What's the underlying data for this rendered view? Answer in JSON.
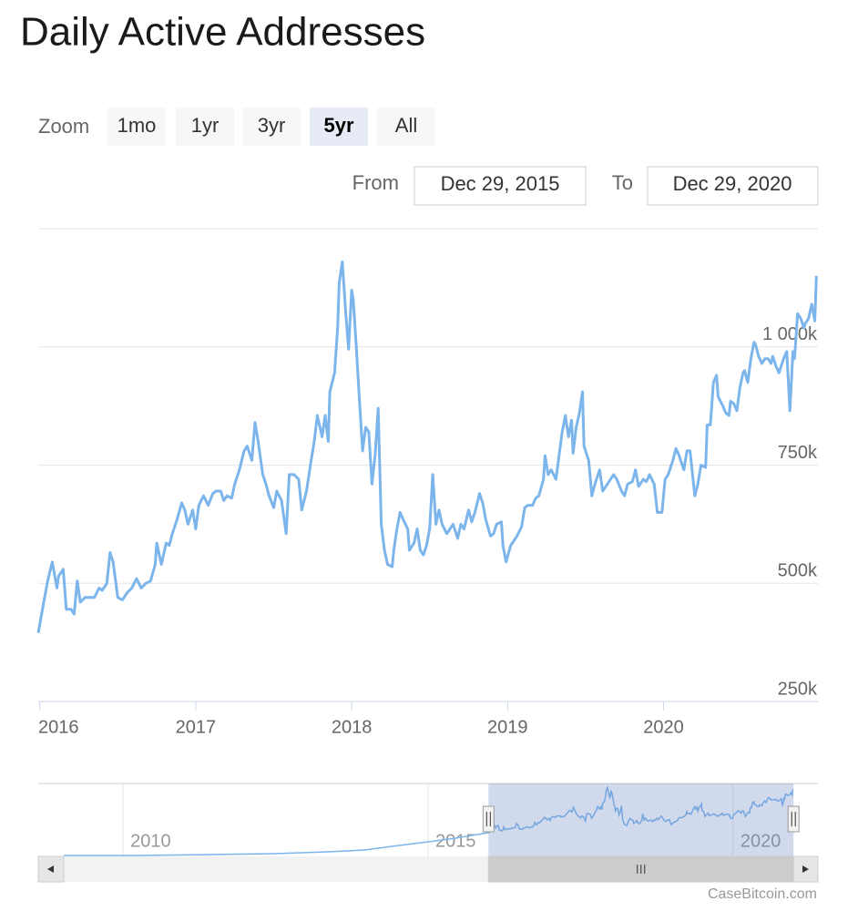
{
  "chart_data": {
    "type": "line",
    "title": "Daily Active Addresses",
    "zoom_label": "Zoom",
    "zoom_buttons": [
      "1mo",
      "1yr",
      "3yr",
      "5yr",
      "All"
    ],
    "selected_zoom_index": 3,
    "from_label": "From",
    "from": "Dec 29, 2015",
    "to_label": "To",
    "to": "Dec 29, 2020",
    "credit": "CaseBitcoin.com",
    "color": "#7cb5ec",
    "xlim": [
      2015.99,
      2020.99
    ],
    "xticks": [
      2016,
      2017,
      2018,
      2019,
      2020
    ],
    "ylim": [
      250,
      1250
    ],
    "yticks": [
      {
        "value": 250,
        "label": "250k"
      },
      {
        "value": 500,
        "label": "500k"
      },
      {
        "value": 750,
        "label": "750k"
      },
      {
        "value": 1000,
        "label": "1 000k"
      }
    ],
    "grid": true,
    "x": [
      2015.99,
      2016.02,
      2016.05,
      2016.08,
      2016.11,
      2016.12,
      2016.15,
      2016.17,
      2016.2,
      2016.22,
      2016.24,
      2016.26,
      2016.29,
      2016.32,
      2016.35,
      2016.38,
      2016.4,
      2016.43,
      2016.45,
      2016.47,
      2016.5,
      2016.53,
      2016.56,
      2016.59,
      2016.62,
      2016.65,
      2016.68,
      2016.71,
      2016.74,
      2016.75,
      2016.78,
      2016.81,
      2016.83,
      2016.85,
      2016.88,
      2016.91,
      2016.93,
      2016.95,
      2016.98,
      2017.0,
      2017.02,
      2017.05,
      2017.08,
      2017.11,
      2017.13,
      2017.16,
      2017.18,
      2017.2,
      2017.23,
      2017.25,
      2017.28,
      2017.31,
      2017.33,
      2017.36,
      2017.38,
      2017.4,
      2017.43,
      2017.45,
      2017.47,
      2017.5,
      2017.52,
      2017.55,
      2017.58,
      2017.6,
      2017.63,
      2017.66,
      2017.68,
      2017.71,
      2017.74,
      2017.76,
      2017.78,
      2017.81,
      2017.83,
      2017.85,
      2017.86,
      2017.89,
      2017.91,
      2017.92,
      2017.94,
      2017.96,
      2017.98,
      2018.0,
      2018.01,
      2018.03,
      2018.05,
      2018.07,
      2018.09,
      2018.11,
      2018.13,
      2018.15,
      2018.17,
      2018.19,
      2018.21,
      2018.23,
      2018.26,
      2018.27,
      2018.29,
      2018.31,
      2018.33,
      2018.36,
      2018.37,
      2018.4,
      2018.42,
      2018.44,
      2018.46,
      2018.48,
      2018.5,
      2018.52,
      2018.54,
      2018.56,
      2018.58,
      2018.61,
      2018.63,
      2018.65,
      2018.68,
      2018.7,
      2018.72,
      2018.75,
      2018.77,
      2018.79,
      2018.82,
      2018.84,
      2018.86,
      2018.89,
      2018.91,
      2018.93,
      2018.96,
      2018.97,
      2018.99,
      2019.02,
      2019.04,
      2019.06,
      2019.09,
      2019.11,
      2019.13,
      2019.16,
      2019.18,
      2019.2,
      2019.23,
      2019.24,
      2019.26,
      2019.28,
      2019.31,
      2019.33,
      2019.35,
      2019.37,
      2019.39,
      2019.41,
      2019.42,
      2019.44,
      2019.46,
      2019.48,
      2019.49,
      2019.52,
      2019.54,
      2019.56,
      2019.59,
      2019.61,
      2019.63,
      2019.66,
      2019.68,
      2019.7,
      2019.73,
      2019.75,
      2019.77,
      2019.8,
      2019.82,
      2019.84,
      2019.87,
      2019.89,
      2019.91,
      2019.94,
      2019.96,
      2019.99,
      2020.01,
      2020.03,
      2020.06,
      2020.08,
      2020.1,
      2020.13,
      2020.15,
      2020.17,
      2020.2,
      2020.22,
      2020.24,
      2020.27,
      2020.28,
      2020.3,
      2020.32,
      2020.34,
      2020.35,
      2020.38,
      2020.4,
      2020.42,
      2020.43,
      2020.45,
      2020.47,
      2020.49,
      2020.51,
      2020.52,
      2020.54,
      2020.56,
      2020.58,
      2020.59,
      2020.61,
      2020.63,
      2020.65,
      2020.67,
      2020.69,
      2020.7,
      2020.72,
      2020.74,
      2020.77,
      2020.79,
      2020.81,
      2020.83,
      2020.84,
      2020.86,
      2020.88,
      2020.9,
      2020.91,
      2020.93,
      2020.95,
      2020.97,
      2020.98
    ],
    "values": [
      395,
      450,
      505,
      545,
      490,
      515,
      530,
      445,
      445,
      435,
      505,
      460,
      470,
      470,
      470,
      490,
      485,
      500,
      565,
      545,
      470,
      465,
      480,
      490,
      510,
      490,
      500,
      505,
      540,
      585,
      540,
      585,
      580,
      605,
      635,
      670,
      655,
      625,
      655,
      615,
      665,
      685,
      665,
      690,
      695,
      695,
      675,
      685,
      680,
      710,
      740,
      780,
      790,
      760,
      840,
      800,
      730,
      710,
      685,
      660,
      695,
      675,
      605,
      730,
      730,
      720,
      655,
      695,
      760,
      800,
      855,
      810,
      855,
      800,
      905,
      945,
      1040,
      1135,
      1180,
      1080,
      995,
      1120,
      1100,
      1000,
      885,
      780,
      830,
      820,
      710,
      770,
      870,
      625,
      570,
      540,
      535,
      570,
      615,
      650,
      635,
      615,
      570,
      585,
      615,
      570,
      560,
      580,
      615,
      730,
      625,
      655,
      625,
      605,
      615,
      625,
      595,
      625,
      615,
      655,
      630,
      650,
      690,
      670,
      635,
      600,
      605,
      625,
      630,
      580,
      545,
      580,
      590,
      600,
      620,
      660,
      665,
      665,
      680,
      685,
      720,
      770,
      730,
      740,
      720,
      770,
      820,
      855,
      810,
      845,
      775,
      830,
      860,
      905,
      790,
      760,
      685,
      710,
      740,
      695,
      705,
      720,
      730,
      720,
      695,
      685,
      710,
      715,
      740,
      705,
      720,
      715,
      730,
      710,
      650,
      650,
      720,
      730,
      760,
      785,
      770,
      740,
      780,
      780,
      685,
      710,
      750,
      745,
      835,
      835,
      925,
      940,
      895,
      875,
      860,
      855,
      885,
      880,
      865,
      915,
      945,
      950,
      925,
      975,
      1010,
      1005,
      980,
      965,
      975,
      975,
      965,
      980,
      960,
      945,
      975,
      990,
      865,
      990,
      975,
      1070,
      1060,
      1040,
      1050,
      1060,
      1090,
      1055,
      1150
    ],
    "navigator": {
      "xlim": [
        2008.61,
        2021.39
      ],
      "xticks": [
        2010,
        2015,
        2020
      ],
      "ylim": [
        0,
        1250
      ]
    }
  }
}
